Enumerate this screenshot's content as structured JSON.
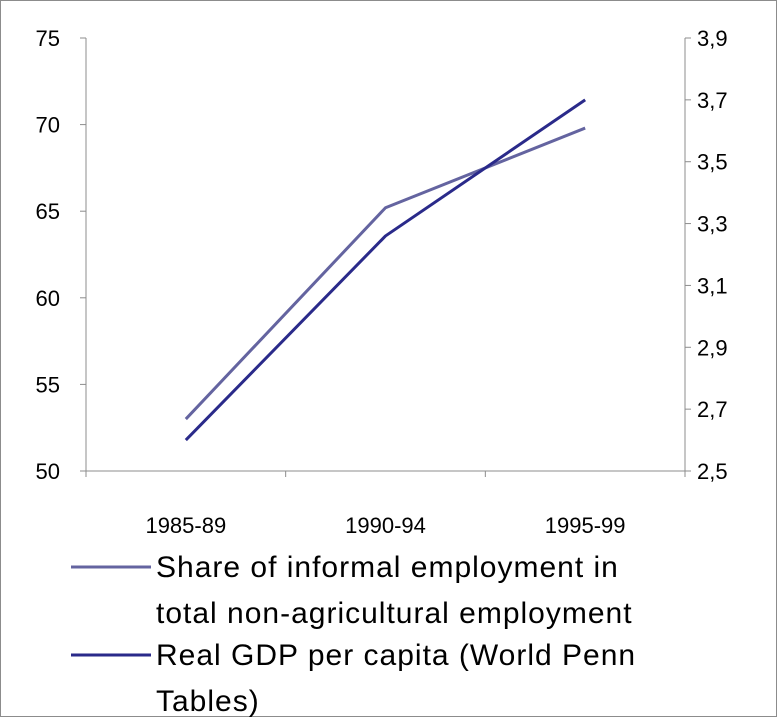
{
  "chart_data": {
    "type": "line",
    "categories": [
      "1985-89",
      "1990-94",
      "1995-99"
    ],
    "series": [
      {
        "name": "Share of informal employment in total non-agricultural employment",
        "legend_lines": [
          "Share of informal employment in",
          "total non-agricultural employment"
        ],
        "axis": "left",
        "color": "#6464a0",
        "values": [
          53.0,
          65.2,
          69.8
        ]
      },
      {
        "name": "Real GDP per capita (World Penn Tables)",
        "legend_lines": [
          "Real GDP per capita (World Penn",
          "Tables)"
        ],
        "axis": "right",
        "color": "#2a2a8a",
        "values": [
          2.6,
          3.26,
          3.7
        ]
      }
    ],
    "y_left": {
      "lim": [
        50,
        75
      ],
      "ticks": [
        "50",
        "55",
        "60",
        "65",
        "70",
        "75"
      ]
    },
    "y_right": {
      "lim": [
        2.5,
        3.9
      ],
      "ticks": [
        "2,5",
        "2,7",
        "2,9",
        "3,1",
        "3,3",
        "3,5",
        "3,7",
        "3,9"
      ]
    },
    "grid": false,
    "legend_position": "bottom"
  }
}
